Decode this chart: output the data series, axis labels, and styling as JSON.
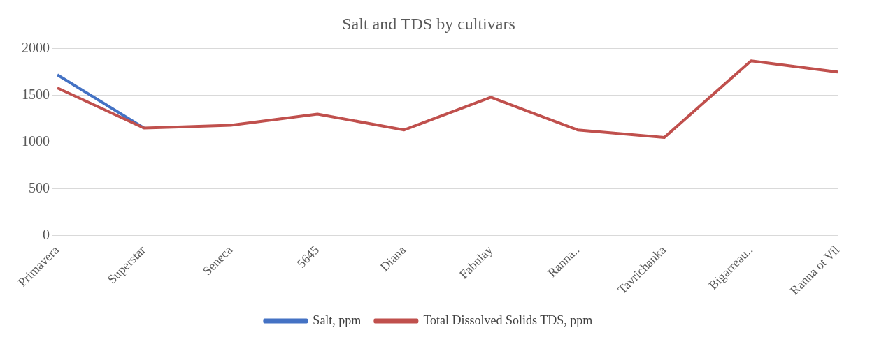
{
  "chart_data": {
    "type": "line",
    "title": "Salt and TDS by cultivars",
    "categories": [
      "Primavera",
      "Superstar",
      "Seneca",
      "5645",
      "Diana",
      "Fabulay",
      "Ranna..",
      "Tavrichanka",
      "Bigarreau..",
      "Ranna ot Vil"
    ],
    "series": [
      {
        "name": "Salt, ppm",
        "color": "#4472c4",
        "values": [
          1720,
          1150,
          null,
          null,
          null,
          null,
          null,
          null,
          null,
          null
        ]
      },
      {
        "name": "Total Dissolved Solids TDS, ppm",
        "color": "#c0504d",
        "values": [
          1580,
          1150,
          1180,
          1300,
          1130,
          1480,
          1130,
          1050,
          1870,
          1750
        ]
      }
    ],
    "ylim": [
      0,
      2000
    ],
    "yticks": [
      0,
      500,
      1000,
      1500,
      2000
    ],
    "grid": "y",
    "legend": "bottom",
    "marker": "none",
    "line_style": "solid"
  }
}
